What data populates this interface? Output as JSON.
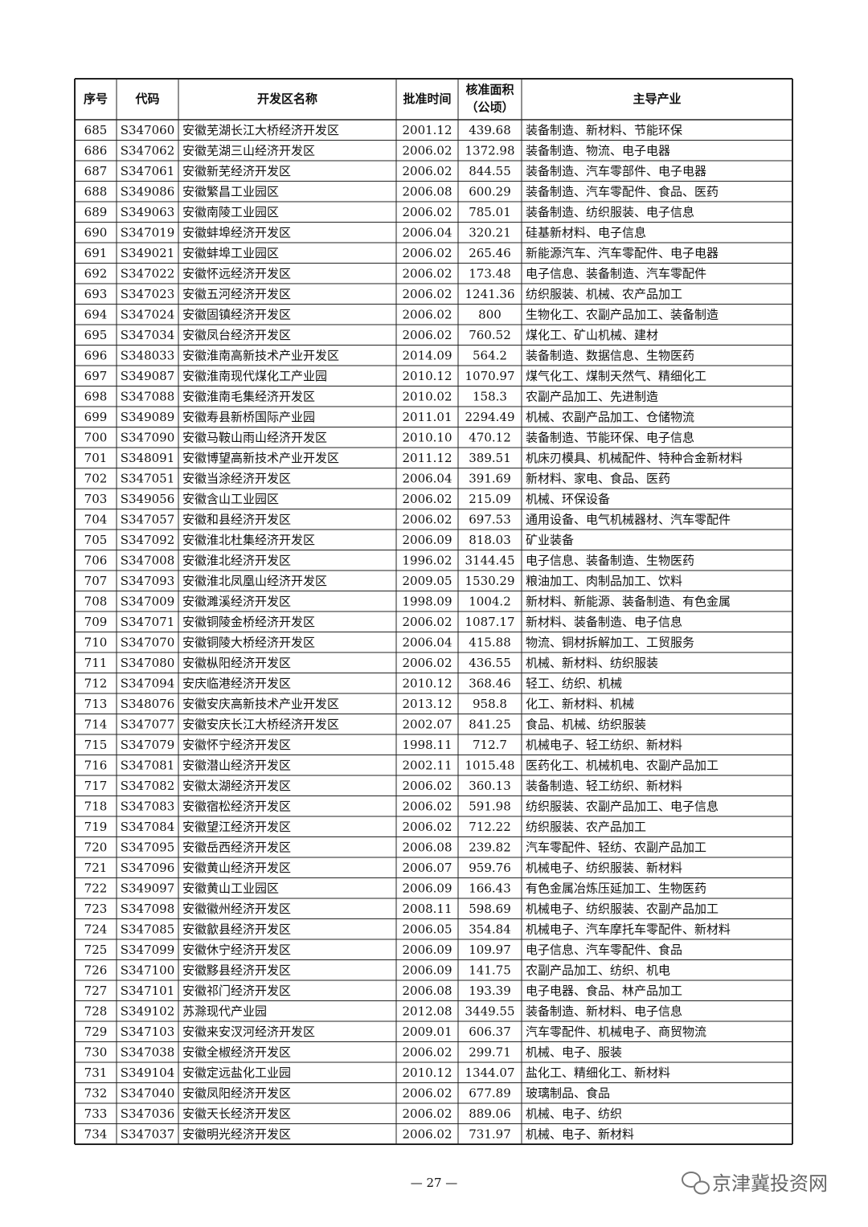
{
  "table": {
    "header": [
      "序号",
      "代码",
      "开发区名称",
      "批准时间",
      [
        "核准面积",
        "（公顷）"
      ],
      "主导产业"
    ],
    "rows": [
      [
        "685",
        "S347060",
        "安徽芜湖长江大桥经济开发区",
        "2001.12",
        "439.68",
        "装备制造、新材料、节能环保"
      ],
      [
        "686",
        "S347062",
        "安徽芜湖三山经济开发区",
        "2006.02",
        "1372.98",
        "装备制造、物流、电子电器"
      ],
      [
        "687",
        "S347061",
        "安徽新芜经济开发区",
        "2006.02",
        "844.55",
        "装备制造、汽车零部件、电子电器"
      ],
      [
        "688",
        "S349086",
        "安徽繁昌工业园区",
        "2006.08",
        "600.29",
        "装备制造、汽车零配件、食品、医药"
      ],
      [
        "689",
        "S349063",
        "安徽南陵工业园区",
        "2006.02",
        "785.01",
        "装备制造、纺织服装、电子信息"
      ],
      [
        "690",
        "S347019",
        "安徽蚌埠经济开发区",
        "2006.04",
        "320.21",
        "硅基新材料、电子信息"
      ],
      [
        "691",
        "S349021",
        "安徽蚌埠工业园区",
        "2006.02",
        "265.46",
        "新能源汽车、汽车零配件、电子电器"
      ],
      [
        "692",
        "S347022",
        "安徽怀远经济开发区",
        "2006.02",
        "173.48",
        "电子信息、装备制造、汽车零配件"
      ],
      [
        "693",
        "S347023",
        "安徽五河经济开发区",
        "2006.02",
        "1241.36",
        "纺织服装、机械、农产品加工"
      ],
      [
        "694",
        "S347024",
        "安徽固镇经济开发区",
        "2006.02",
        "800",
        "生物化工、农副产品加工、装备制造"
      ],
      [
        "695",
        "S347034",
        "安徽凤台经济开发区",
        "2006.02",
        "760.52",
        "煤化工、矿山机械、建材"
      ],
      [
        "696",
        "S348033",
        "安徽淮南高新技术产业开发区",
        "2014.09",
        "564.2",
        "装备制造、数据信息、生物医药"
      ],
      [
        "697",
        "S349087",
        "安徽淮南现代煤化工产业园",
        "2010.12",
        "1070.97",
        "煤气化工、煤制天然气、精细化工"
      ],
      [
        "698",
        "S347088",
        "安徽淮南毛集经济开发区",
        "2010.02",
        "158.3",
        "农副产品加工、先进制造"
      ],
      [
        "699",
        "S349089",
        "安徽寿县新桥国际产业园",
        "2011.01",
        "2294.49",
        "机械、农副产品加工、仓储物流"
      ],
      [
        "700",
        "S347090",
        "安徽马鞍山雨山经济开发区",
        "2010.10",
        "470.12",
        "装备制造、节能环保、电子信息"
      ],
      [
        "701",
        "S348091",
        "安徽博望高新技术产业开发区",
        "2011.12",
        "389.51",
        "机床刃模具、机械配件、特种合金新材料"
      ],
      [
        "702",
        "S347051",
        "安徽当涂经济开发区",
        "2006.04",
        "391.69",
        "新材料、家电、食品、医药"
      ],
      [
        "703",
        "S349056",
        "安徽含山工业园区",
        "2006.02",
        "215.09",
        "机械、环保设备"
      ],
      [
        "704",
        "S347057",
        "安徽和县经济开发区",
        "2006.02",
        "697.53",
        "通用设备、电气机械器材、汽车零配件"
      ],
      [
        "705",
        "S347092",
        "安徽淮北杜集经济开发区",
        "2006.09",
        "818.03",
        "矿业装备"
      ],
      [
        "706",
        "S347008",
        "安徽淮北经济开发区",
        "1996.02",
        "3144.45",
        "电子信息、装备制造、生物医药"
      ],
      [
        "707",
        "S347093",
        "安徽淮北凤凰山经济开发区",
        "2009.05",
        "1530.29",
        "粮油加工、肉制品加工、饮料"
      ],
      [
        "708",
        "S347009",
        "安徽濉溪经济开发区",
        "1998.09",
        "1004.2",
        "新材料、新能源、装备制造、有色金属"
      ],
      [
        "709",
        "S347071",
        "安徽铜陵金桥经济开发区",
        "2006.02",
        "1087.17",
        "新材料、装备制造、电子信息"
      ],
      [
        "710",
        "S347070",
        "安徽铜陵大桥经济开发区",
        "2006.04",
        "415.88",
        "物流、铜材拆解加工、工贸服务"
      ],
      [
        "711",
        "S347080",
        "安徽枞阳经济开发区",
        "2006.02",
        "436.55",
        "机械、新材料、纺织服装"
      ],
      [
        "712",
        "S347094",
        "安庆临港经济开发区",
        "2010.12",
        "368.46",
        "轻工、纺织、机械"
      ],
      [
        "713",
        "S348076",
        "安徽安庆高新技术产业开发区",
        "2013.12",
        "958.8",
        "化工、新材料、机械"
      ],
      [
        "714",
        "S347077",
        "安徽安庆长江大桥经济开发区",
        "2002.07",
        "841.25",
        "食品、机械、纺织服装"
      ],
      [
        "715",
        "S347079",
        "安徽怀宁经济开发区",
        "1998.11",
        "712.7",
        "机械电子、轻工纺织、新材料"
      ],
      [
        "716",
        "S347081",
        "安徽潜山经济开发区",
        "2002.11",
        "1015.48",
        "医药化工、机械机电、农副产品加工"
      ],
      [
        "717",
        "S347082",
        "安徽太湖经济开发区",
        "2006.02",
        "360.13",
        "装备制造、轻工纺织、新材料"
      ],
      [
        "718",
        "S347083",
        "安徽宿松经济开发区",
        "2006.02",
        "591.98",
        "纺织服装、农副产品加工、电子信息"
      ],
      [
        "719",
        "S347084",
        "安徽望江经济开发区",
        "2006.02",
        "712.22",
        "纺织服装、农产品加工"
      ],
      [
        "720",
        "S347095",
        "安徽岳西经济开发区",
        "2006.08",
        "239.82",
        "汽车零配件、轻纺、农副产品加工"
      ],
      [
        "721",
        "S347096",
        "安徽黄山经济开发区",
        "2006.07",
        "959.76",
        "机械电子、纺织服装、新材料"
      ],
      [
        "722",
        "S349097",
        "安徽黄山工业园区",
        "2006.09",
        "166.43",
        "有色金属冶炼压延加工、生物医药"
      ],
      [
        "723",
        "S347098",
        "安徽徽州经济开发区",
        "2008.11",
        "598.69",
        "机械电子、纺织服装、农副产品加工"
      ],
      [
        "724",
        "S347085",
        "安徽歙县经济开发区",
        "2006.05",
        "354.84",
        "机械电子、汽车摩托车零配件、新材料"
      ],
      [
        "725",
        "S347099",
        "安徽休宁经济开发区",
        "2006.09",
        "109.97",
        "电子信息、汽车零配件、食品"
      ],
      [
        "726",
        "S347100",
        "安徽黟县经济开发区",
        "2006.09",
        "141.75",
        "农副产品加工、纺织、机电"
      ],
      [
        "727",
        "S347101",
        "安徽祁门经济开发区",
        "2006.08",
        "193.39",
        "电子电器、食品、林产品加工"
      ],
      [
        "728",
        "S349102",
        "苏滁现代产业园",
        "2012.08",
        "3449.55",
        "装备制造、新材料、电子信息"
      ],
      [
        "729",
        "S347103",
        "安徽来安汊河经济开发区",
        "2009.01",
        "606.37",
        "汽车零配件、机械电子、商贸物流"
      ],
      [
        "730",
        "S347038",
        "安徽全椒经济开发区",
        "2006.02",
        "299.71",
        "机械、电子、服装"
      ],
      [
        "731",
        "S349104",
        "安徽定远盐化工业园",
        "2010.12",
        "1344.07",
        "盐化工、精细化工、新材料"
      ],
      [
        "732",
        "S347040",
        "安徽凤阳经济开发区",
        "2006.02",
        "677.89",
        "玻璃制品、食品"
      ],
      [
        "733",
        "S347036",
        "安徽天长经济开发区",
        "2006.02",
        "889.06",
        "机械、电子、纺织"
      ],
      [
        "734",
        "S347037",
        "安徽明光经济开发区",
        "2006.02",
        "731.97",
        "机械、电子、新材料"
      ]
    ]
  },
  "footer": {
    "page_number": "— 27 —",
    "watermark": "京津冀投资网"
  }
}
